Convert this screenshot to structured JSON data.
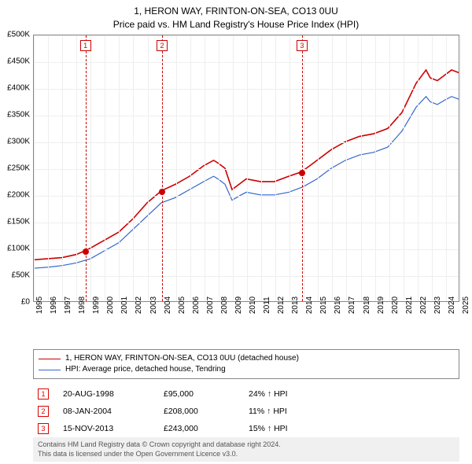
{
  "title_line1": "1, HERON WAY, FRINTON-ON-SEA, CO13 0UU",
  "title_line2": "Price paid vs. HM Land Registry's House Price Index (HPI)",
  "chart": {
    "type": "line",
    "x_years": [
      1995,
      1996,
      1997,
      1998,
      1999,
      2000,
      2001,
      2002,
      2003,
      2004,
      2005,
      2006,
      2007,
      2008,
      2009,
      2010,
      2011,
      2012,
      2013,
      2014,
      2015,
      2016,
      2017,
      2018,
      2019,
      2020,
      2021,
      2022,
      2023,
      2024,
      2025
    ],
    "ylim": [
      0,
      500000
    ],
    "ytick_step": 50000,
    "ytick_labels": [
      "£0",
      "£50K",
      "£100K",
      "£150K",
      "£200K",
      "£250K",
      "£300K",
      "£350K",
      "£400K",
      "£450K",
      "£500K"
    ],
    "grid_color": "#eeeeee",
    "border_color": "#888888",
    "background": "#ffffff",
    "series": [
      {
        "name": "property",
        "label": "1, HERON WAY, FRINTON-ON-SEA, CO13 0UU (detached house)",
        "color": "#cc0000",
        "width": 1.6,
        "points": [
          [
            1995.0,
            78000
          ],
          [
            1996.0,
            80000
          ],
          [
            1997.0,
            82000
          ],
          [
            1998.0,
            88000
          ],
          [
            1998.63,
            95000
          ],
          [
            1999.0,
            100000
          ],
          [
            2000.0,
            115000
          ],
          [
            2001.0,
            130000
          ],
          [
            2002.0,
            155000
          ],
          [
            2003.0,
            185000
          ],
          [
            2004.02,
            208000
          ],
          [
            2005.0,
            220000
          ],
          [
            2006.0,
            235000
          ],
          [
            2007.0,
            255000
          ],
          [
            2007.7,
            265000
          ],
          [
            2008.0,
            260000
          ],
          [
            2008.5,
            250000
          ],
          [
            2009.0,
            210000
          ],
          [
            2009.5,
            220000
          ],
          [
            2010.0,
            230000
          ],
          [
            2011.0,
            225000
          ],
          [
            2012.0,
            225000
          ],
          [
            2013.0,
            235000
          ],
          [
            2013.87,
            243000
          ],
          [
            2014.5,
            255000
          ],
          [
            2015.0,
            265000
          ],
          [
            2016.0,
            285000
          ],
          [
            2017.0,
            300000
          ],
          [
            2018.0,
            310000
          ],
          [
            2019.0,
            315000
          ],
          [
            2020.0,
            325000
          ],
          [
            2021.0,
            355000
          ],
          [
            2022.0,
            410000
          ],
          [
            2022.7,
            435000
          ],
          [
            2023.0,
            420000
          ],
          [
            2023.5,
            415000
          ],
          [
            2024.0,
            425000
          ],
          [
            2024.5,
            435000
          ],
          [
            2025.0,
            430000
          ]
        ]
      },
      {
        "name": "hpi",
        "label": "HPI: Average price, detached house, Tendring",
        "color": "#3366cc",
        "width": 1.2,
        "points": [
          [
            1995.0,
            62000
          ],
          [
            1996.0,
            64000
          ],
          [
            1997.0,
            67000
          ],
          [
            1998.0,
            72000
          ],
          [
            1999.0,
            80000
          ],
          [
            2000.0,
            95000
          ],
          [
            2001.0,
            110000
          ],
          [
            2002.0,
            135000
          ],
          [
            2003.0,
            160000
          ],
          [
            2004.0,
            185000
          ],
          [
            2005.0,
            195000
          ],
          [
            2006.0,
            210000
          ],
          [
            2007.0,
            225000
          ],
          [
            2007.7,
            235000
          ],
          [
            2008.0,
            230000
          ],
          [
            2008.5,
            220000
          ],
          [
            2009.0,
            190000
          ],
          [
            2009.5,
            198000
          ],
          [
            2010.0,
            205000
          ],
          [
            2011.0,
            200000
          ],
          [
            2012.0,
            200000
          ],
          [
            2013.0,
            205000
          ],
          [
            2014.0,
            215000
          ],
          [
            2015.0,
            230000
          ],
          [
            2016.0,
            250000
          ],
          [
            2017.0,
            265000
          ],
          [
            2018.0,
            275000
          ],
          [
            2019.0,
            280000
          ],
          [
            2020.0,
            290000
          ],
          [
            2021.0,
            320000
          ],
          [
            2022.0,
            365000
          ],
          [
            2022.7,
            385000
          ],
          [
            2023.0,
            375000
          ],
          [
            2023.5,
            370000
          ],
          [
            2024.0,
            378000
          ],
          [
            2024.5,
            385000
          ],
          [
            2025.0,
            380000
          ]
        ]
      }
    ],
    "markers": [
      {
        "n": "1",
        "x": 1998.63,
        "y": 95000
      },
      {
        "n": "2",
        "x": 2004.02,
        "y": 208000
      },
      {
        "n": "3",
        "x": 2013.87,
        "y": 243000
      }
    ],
    "marker_color": "#cc0000"
  },
  "legend": {
    "border_color": "#888888"
  },
  "sales": [
    {
      "n": "1",
      "date": "20-AUG-1998",
      "price": "£95,000",
      "hpi": "24% ↑ HPI"
    },
    {
      "n": "2",
      "date": "08-JAN-2004",
      "price": "£208,000",
      "hpi": "11% ↑ HPI"
    },
    {
      "n": "3",
      "date": "15-NOV-2013",
      "price": "£243,000",
      "hpi": "15% ↑ HPI"
    }
  ],
  "attribution_line1": "Contains HM Land Registry data © Crown copyright and database right 2024.",
  "attribution_line2": "This data is licensed under the Open Government Licence v3.0."
}
